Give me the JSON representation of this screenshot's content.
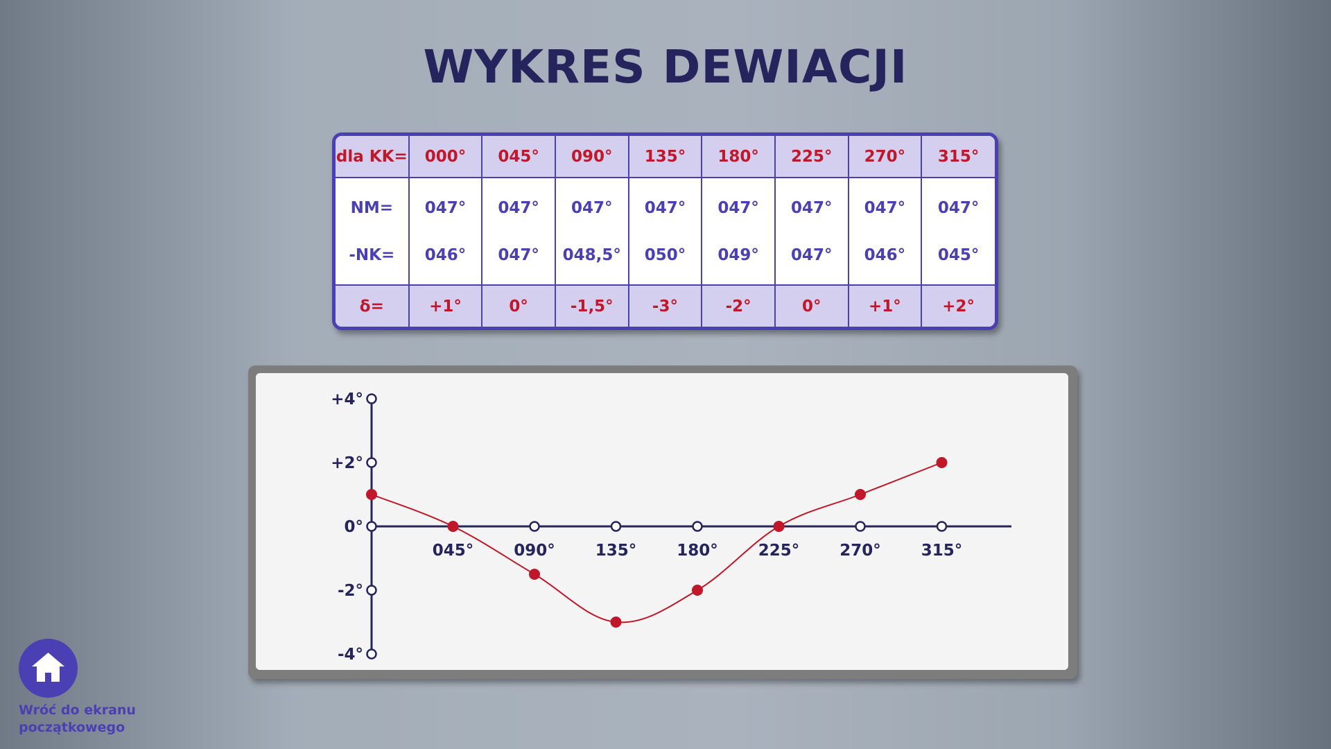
{
  "page": {
    "title": "WYKRES DEWIACJI"
  },
  "table": {
    "kk_label": "dla KK=",
    "nm_label": "NM=",
    "nk_label": "-NK=",
    "delta_label": "δ=",
    "columns": [
      {
        "kk": "000°",
        "nm": "047°",
        "nk": "046°",
        "delta": "+1°"
      },
      {
        "kk": "045°",
        "nm": "047°",
        "nk": "047°",
        "delta": "0°"
      },
      {
        "kk": "090°",
        "nm": "047°",
        "nk": "048,5°",
        "delta": "-1,5°"
      },
      {
        "kk": "135°",
        "nm": "047°",
        "nk": "050°",
        "delta": "-3°"
      },
      {
        "kk": "180°",
        "nm": "047°",
        "nk": "049°",
        "delta": "-2°"
      },
      {
        "kk": "225°",
        "nm": "047°",
        "nk": "047°",
        "delta": "0°"
      },
      {
        "kk": "270°",
        "nm": "047°",
        "nk": "046°",
        "delta": "+1°"
      },
      {
        "kk": "315°",
        "nm": "047°",
        "nk": "045°",
        "delta": "+2°"
      }
    ]
  },
  "chart_data": {
    "type": "line",
    "x": [
      0,
      45,
      90,
      135,
      180,
      225,
      270,
      315
    ],
    "x_tick_labels": [
      "045°",
      "090°",
      "135°",
      "180°",
      "225°",
      "270°",
      "315°"
    ],
    "x_tick_values": [
      45,
      90,
      135,
      180,
      225,
      270,
      315
    ],
    "y_tick_labels": [
      "+4°",
      "+2°",
      "0°",
      "-2°",
      "-4°"
    ],
    "y_tick_values": [
      4,
      2,
      0,
      -2,
      -4
    ],
    "series": [
      {
        "values": [
          1,
          0,
          -1.5,
          -3,
          -2,
          0,
          1,
          2
        ],
        "color": "#c0172a"
      }
    ],
    "xlim": [
      0,
      330
    ],
    "ylim": [
      -4,
      4
    ],
    "smooth": true,
    "axis_color": "#26245c"
  },
  "home": {
    "label_line1": "Wróć do ekranu",
    "label_line2": "początkowego",
    "icon": "home-icon"
  }
}
